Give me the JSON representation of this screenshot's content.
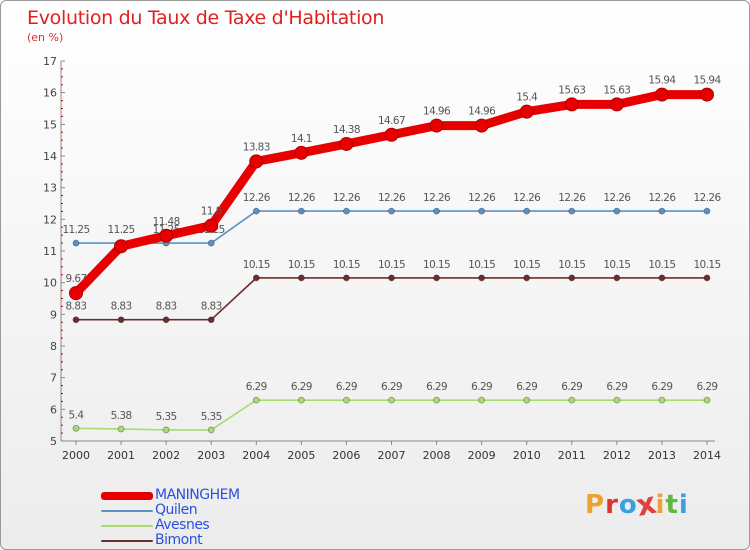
{
  "title": "Evolution du Taux de Taxe d'Habitation",
  "subtitle": "(en %)",
  "brand": {
    "text": "Proxiti",
    "colors": [
      "#f0a030",
      "#e03030",
      "#3aa0e0",
      "#e04040",
      "#f0a030",
      "#60b840",
      "#3aa0e0"
    ]
  },
  "chart_data": {
    "type": "line",
    "title": "Evolution du Taux de Taxe d'Habitation",
    "ylabel": "(en %)",
    "xlabel": "",
    "ylim": [
      5,
      17
    ],
    "yticks": [
      5,
      6,
      7,
      8,
      9,
      10,
      11,
      12,
      13,
      14,
      15,
      16,
      17
    ],
    "grid": false,
    "legend_position": "bottom-left",
    "x": [
      "2000",
      "2001",
      "2002",
      "2003",
      "2004",
      "2005",
      "2006",
      "2007",
      "2008",
      "2009",
      "2010",
      "2011",
      "2012",
      "2013",
      "2014"
    ],
    "series": [
      {
        "name": "Quilen",
        "color": "#5b92c6",
        "values": [
          11.25,
          11.25,
          11.25,
          11.25,
          12.26,
          12.26,
          12.26,
          12.26,
          12.26,
          12.26,
          12.26,
          12.26,
          12.26,
          12.26,
          12.26
        ],
        "labels": [
          "11.25",
          "11.25",
          "11.25",
          "11.25",
          "12.26",
          "12.26",
          "12.26",
          "12.26",
          "12.26",
          "12.26",
          "12.26",
          "12.26",
          "12.26",
          "12.26",
          "12.26"
        ]
      },
      {
        "name": "Avesnes",
        "color": "#a6dc70",
        "values": [
          5.4,
          5.38,
          5.35,
          5.35,
          6.29,
          6.29,
          6.29,
          6.29,
          6.29,
          6.29,
          6.29,
          6.29,
          6.29,
          6.29,
          6.29
        ],
        "labels": [
          "5.4",
          "5.38",
          "5.35",
          "5.35",
          "6.29",
          "6.29",
          "6.29",
          "6.29",
          "6.29",
          "6.29",
          "6.29",
          "6.29",
          "6.29",
          "6.29",
          "6.29"
        ]
      },
      {
        "name": "Bimont",
        "color": "#6e2c2c",
        "values": [
          8.83,
          8.83,
          8.83,
          8.83,
          10.15,
          10.15,
          10.15,
          10.15,
          10.15,
          10.15,
          10.15,
          10.15,
          10.15,
          10.15,
          10.15
        ],
        "labels": [
          "8.83",
          "8.83",
          "8.83",
          "8.83",
          "10.15",
          "10.15",
          "10.15",
          "10.15",
          "10.15",
          "10.15",
          "10.15",
          "10.15",
          "10.15",
          "10.15",
          "10.15"
        ]
      },
      {
        "name": "MANINGHEM",
        "color": "#e80000",
        "values": [
          9.67,
          11.15,
          11.48,
          11.8,
          13.83,
          14.1,
          14.38,
          14.67,
          14.96,
          14.96,
          15.4,
          15.63,
          15.63,
          15.94,
          15.94
        ],
        "labels": [
          "9.67",
          "",
          "11.48",
          "11.8",
          "13.83",
          "14.1",
          "14.38",
          "14.67",
          "14.96",
          "14.96",
          "15.4",
          "15.63",
          "15.63",
          "15.94",
          "15.94"
        ]
      }
    ],
    "legend": [
      "MANINGHEM",
      "Quilen",
      "Avesnes",
      "Bimont"
    ]
  }
}
